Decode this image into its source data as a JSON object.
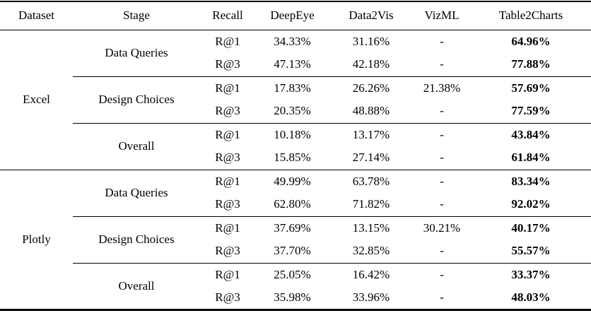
{
  "table": {
    "headers": {
      "dataset": "Dataset",
      "stage": "Stage",
      "recall": "Recall",
      "deepeye": "DeepEye",
      "data2vis": "Data2Vis",
      "vizml": "VizML",
      "table2charts": "Table2Charts"
    },
    "datasets": [
      {
        "name": "Excel",
        "stages": [
          {
            "name": "Data Queries",
            "rows": [
              {
                "recall": "R@1",
                "deepeye": "34.33%",
                "data2vis": "31.16%",
                "vizml": "-",
                "table2charts": "64.96%"
              },
              {
                "recall": "R@3",
                "deepeye": "47.13%",
                "data2vis": "42.18%",
                "vizml": "-",
                "table2charts": "77.88%"
              }
            ]
          },
          {
            "name": "Design Choices",
            "rows": [
              {
                "recall": "R@1",
                "deepeye": "17.83%",
                "data2vis": "26.26%",
                "vizml": "21.38%",
                "table2charts": "57.69%"
              },
              {
                "recall": "R@3",
                "deepeye": "20.35%",
                "data2vis": "48.88%",
                "vizml": "-",
                "table2charts": "77.59%"
              }
            ]
          },
          {
            "name": "Overall",
            "rows": [
              {
                "recall": "R@1",
                "deepeye": "10.18%",
                "data2vis": "13.17%",
                "vizml": "-",
                "table2charts": "43.84%"
              },
              {
                "recall": "R@3",
                "deepeye": "15.85%",
                "data2vis": "27.14%",
                "vizml": "-",
                "table2charts": "61.84%"
              }
            ]
          }
        ]
      },
      {
        "name": "Plotly",
        "stages": [
          {
            "name": "Data Queries",
            "rows": [
              {
                "recall": "R@1",
                "deepeye": "49.99%",
                "data2vis": "63.78%",
                "vizml": "-",
                "table2charts": "83.34%"
              },
              {
                "recall": "R@3",
                "deepeye": "62.80%",
                "data2vis": "71.82%",
                "vizml": "-",
                "table2charts": "92.02%"
              }
            ]
          },
          {
            "name": "Design Choices",
            "rows": [
              {
                "recall": "R@1",
                "deepeye": "37.69%",
                "data2vis": "13.15%",
                "vizml": "30.21%",
                "table2charts": "40.17%"
              },
              {
                "recall": "R@3",
                "deepeye": "37.70%",
                "data2vis": "32.85%",
                "vizml": "-",
                "table2charts": "55.57%"
              }
            ]
          },
          {
            "name": "Overall",
            "rows": [
              {
                "recall": "R@1",
                "deepeye": "25.05%",
                "data2vis": "16.42%",
                "vizml": "-",
                "table2charts": "33.37%"
              },
              {
                "recall": "R@3",
                "deepeye": "35.98%",
                "data2vis": "33.96%",
                "vizml": "-",
                "table2charts": "48.03%"
              }
            ]
          }
        ]
      }
    ],
    "colors": {
      "text": "#000000",
      "background": "#ffffff",
      "rule": "#000000"
    }
  }
}
